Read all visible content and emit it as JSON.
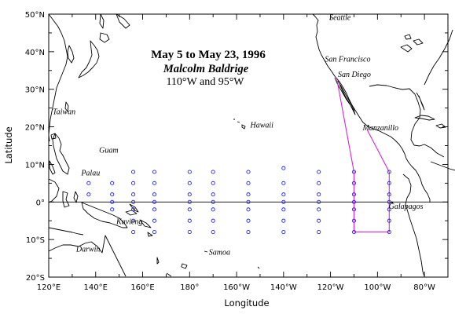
{
  "title": {
    "line1": "May 5 to May 23, 1996",
    "line2": "Malcolm Baldrige",
    "line3": "110°W and 95°W"
  },
  "axes": {
    "xlabel": "Longitude",
    "ylabel": "Latitude",
    "lon_range": [
      120,
      290
    ],
    "lat_range": [
      -20,
      50
    ],
    "lon_ticks": [
      {
        "lon": 120,
        "label": "120°E"
      },
      {
        "lon": 140,
        "label": "140°E"
      },
      {
        "lon": 160,
        "label": "160°E"
      },
      {
        "lon": 180,
        "label": "180°"
      },
      {
        "lon": 200,
        "label": "160°W"
      },
      {
        "lon": 220,
        "label": "140°W"
      },
      {
        "lon": 240,
        "label": "120°W"
      },
      {
        "lon": 260,
        "label": "100°W"
      },
      {
        "lon": 280,
        "label": "80°W"
      }
    ],
    "lat_ticks": [
      {
        "lat": 50,
        "label": "50°N"
      },
      {
        "lat": 40,
        "label": "40°N"
      },
      {
        "lat": 30,
        "label": "30°N"
      },
      {
        "lat": 20,
        "label": "20°N"
      },
      {
        "lat": 10,
        "label": "10°N"
      },
      {
        "lat": 0,
        "label": "0°"
      },
      {
        "lat": -10,
        "label": "10°S"
      },
      {
        "lat": -20,
        "label": "20°S"
      }
    ]
  },
  "places": [
    {
      "name": "Seattle",
      "lon": 237.5,
      "lat": 47.6
    },
    {
      "name": "San Francisco",
      "lon": 237.6,
      "lat": 37.8
    },
    {
      "name": "San Diego",
      "lon": 242.8,
      "lat": 32.7
    },
    {
      "name": "Taiwan",
      "lon": 121.0,
      "lat": 23.8
    },
    {
      "name": "Hawaii",
      "lon": 204.5,
      "lat": 20.2
    },
    {
      "name": "Manzanillo",
      "lon": 255.7,
      "lat": 19.1
    },
    {
      "name": "Guam",
      "lon": 144.8,
      "lat": 13.5
    },
    {
      "name": "Palau",
      "lon": 134.5,
      "lat": 7.5
    },
    {
      "name": "Galapagos",
      "lon": 270.8,
      "lat": -0.6
    },
    {
      "name": "Kavieng",
      "lon": 150.8,
      "lat": -2.6
    },
    {
      "name": "Darwin",
      "lon": 131.0,
      "lat": -12.4
    },
    {
      "name": "Samoa",
      "lon": 188.2,
      "lat": -13.8
    }
  ],
  "stations": [
    {
      "lon": 137,
      "lats": [
        2,
        5
      ]
    },
    {
      "lon": 147,
      "lats": [
        -2,
        0,
        2,
        5
      ]
    },
    {
      "lon": 156,
      "lats": [
        -8,
        -5,
        -2,
        0,
        2,
        5,
        8
      ]
    },
    {
      "lon": 165,
      "lats": [
        -8,
        -5,
        -2,
        0,
        2,
        5,
        8
      ]
    },
    {
      "lon": 180,
      "lats": [
        -8,
        -5,
        -2,
        0,
        2,
        5,
        8
      ]
    },
    {
      "lon": 190,
      "lats": [
        -8,
        -5,
        -2,
        0,
        2,
        5,
        8
      ]
    },
    {
      "lon": 205,
      "lats": [
        -8,
        -5,
        -2,
        0,
        2,
        5,
        8
      ]
    },
    {
      "lon": 220,
      "lats": [
        -8,
        -5,
        -2,
        0,
        2,
        5,
        9
      ]
    },
    {
      "lon": 235,
      "lats": [
        -8,
        -5,
        -2,
        0,
        2,
        5,
        8
      ]
    },
    {
      "lon": 250,
      "lats": [
        -8,
        -5,
        -2,
        0,
        2,
        5,
        8
      ]
    },
    {
      "lon": 265,
      "lats": [
        -8,
        -5,
        -2,
        0,
        2,
        5,
        8
      ]
    }
  ],
  "cruise_track": [
    {
      "lon": 242.7,
      "lat": 32.7
    },
    {
      "lon": 250,
      "lat": 8
    },
    {
      "lon": 250,
      "lat": -8
    },
    {
      "lon": 265,
      "lat": -8
    },
    {
      "lon": 265,
      "lat": 8
    },
    {
      "lon": 255.7,
      "lat": 19.1
    }
  ],
  "colors": {
    "stations": "#2222ee",
    "track": "#dd22dd",
    "coastline": "#000000"
  }
}
